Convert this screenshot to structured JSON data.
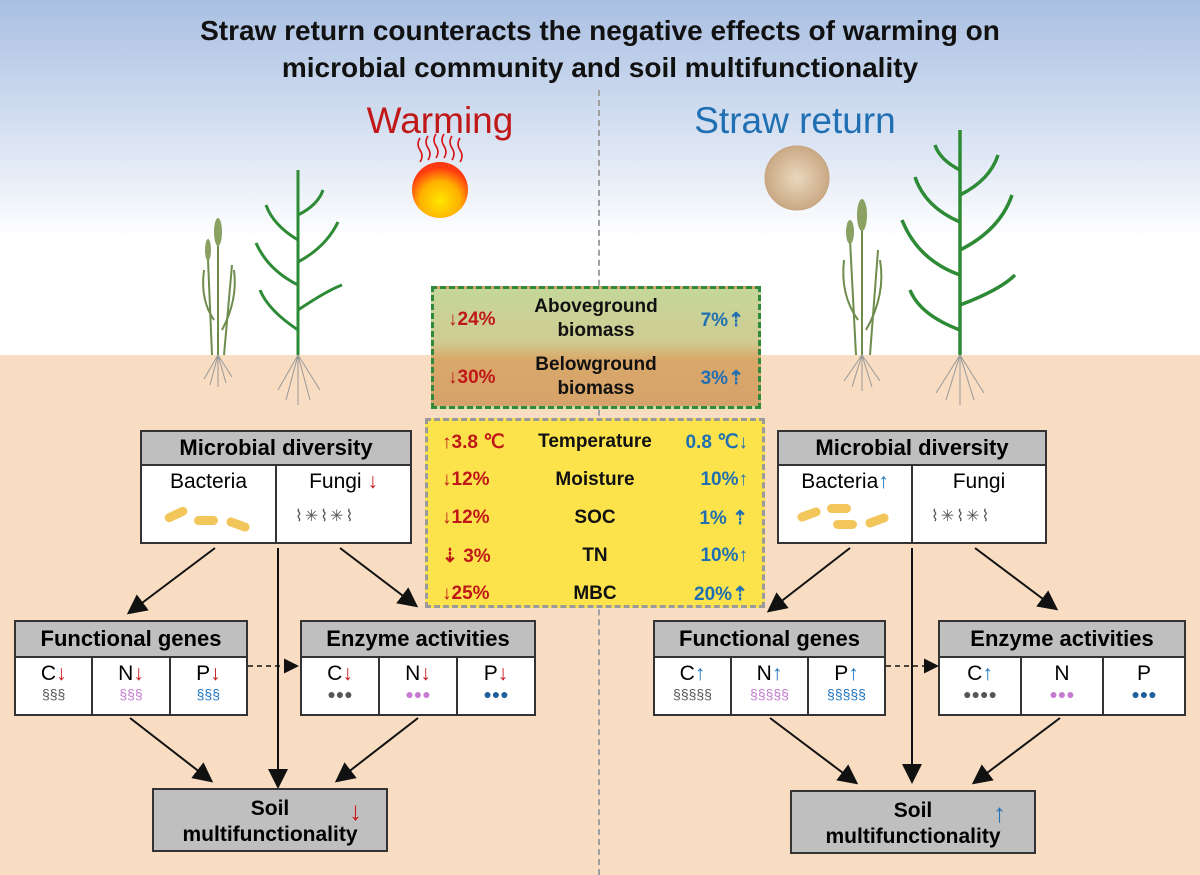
{
  "title_line1": "Straw return counteracts the negative effects of warming on",
  "title_line2": "microbial community and soil multifunctionality",
  "warming_label": "Warming",
  "straw_label": "Straw return",
  "center_top": {
    "rows": [
      {
        "left": "24%",
        "name_line1": "Aboveground",
        "name_line2": "biomass",
        "right": "7%"
      },
      {
        "left": "30%",
        "name_line1": "Belowground",
        "name_line2": "biomass",
        "right": "3%"
      }
    ]
  },
  "center_bottom": {
    "rows": [
      {
        "left": "3.8 ℃",
        "name": "Temperature",
        "right": "0.8 ℃"
      },
      {
        "left": "12%",
        "name": "Moisture",
        "right": "10%"
      },
      {
        "left": "12%",
        "name": "SOC",
        "right": "1%"
      },
      {
        "left": "3%",
        "name": "TN",
        "right": "10%"
      },
      {
        "left": "25%",
        "name": "MBC",
        "right": "20%"
      }
    ]
  },
  "left": {
    "diversity_title": "Microbial diversity",
    "bacteria": "Bacteria",
    "fungi": "Fungi",
    "functional_title": "Functional genes",
    "enzyme_title": "Enzyme activities",
    "c": "C",
    "n": "N",
    "p": "P",
    "soil_line1": "Soil",
    "soil_line2": "multifunctionality"
  },
  "right": {
    "diversity_title": "Microbial diversity",
    "bacteria": "Bacteria",
    "fungi": "Fungi",
    "functional_title": "Functional genes",
    "enzyme_title": "Enzyme activities",
    "c": "C",
    "n": "N",
    "p": "P",
    "soil_line1": "Soil",
    "soil_line2": "multifunctionality"
  },
  "colors": {
    "decrease": "#c8161d",
    "increase": "#1f74bc",
    "sky": "#a9bfe2",
    "soil": "#f8ddc3"
  }
}
